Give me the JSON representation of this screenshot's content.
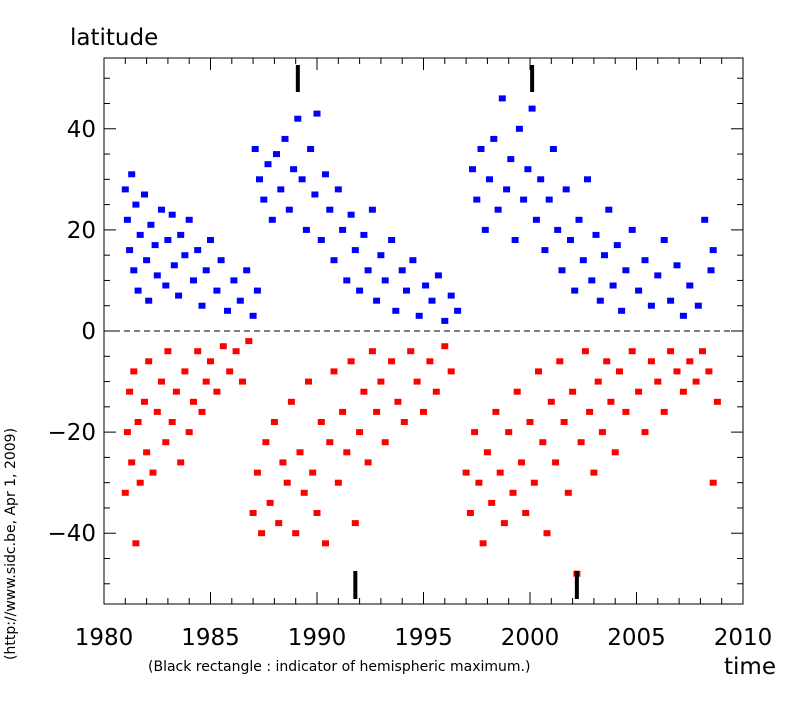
{
  "chart_data": {
    "type": "scatter",
    "ylabel": "latitude",
    "xlabel": "time",
    "note": "(Black rectangle : indicator of hemispheric maximum.)",
    "credit": "(http://www.sidc.be, Apr  1, 2009)",
    "xlim": [
      1980,
      2010
    ],
    "ylim": [
      -54,
      54
    ],
    "x_ticks": [
      1980,
      1985,
      1990,
      1995,
      2000,
      2005,
      2010
    ],
    "x_tick_labels": [
      "1980",
      "1985",
      "1990",
      "1995",
      "2000",
      "2005",
      "2010"
    ],
    "y_ticks": [
      -40,
      -20,
      0,
      20,
      40
    ],
    "y_tick_labels": [
      "−40",
      "−20",
      "0",
      "20",
      "40"
    ],
    "zero_line": true,
    "grid": false,
    "colors": {
      "north": "#0000ff",
      "south": "#ff0000",
      "axes": "#000000",
      "marker": "#000000"
    },
    "series": [
      {
        "hemisphere": "north",
        "color": "#0000ff",
        "points": [
          [
            1981.0,
            28
          ],
          [
            1981.1,
            22
          ],
          [
            1981.2,
            16
          ],
          [
            1981.3,
            31
          ],
          [
            1981.4,
            12
          ],
          [
            1981.5,
            25
          ],
          [
            1981.6,
            8
          ],
          [
            1981.7,
            19
          ],
          [
            1981.9,
            27
          ],
          [
            1982.0,
            14
          ],
          [
            1982.1,
            6
          ],
          [
            1982.2,
            21
          ],
          [
            1982.4,
            17
          ],
          [
            1982.5,
            11
          ],
          [
            1982.7,
            24
          ],
          [
            1982.9,
            9
          ],
          [
            1983.0,
            18
          ],
          [
            1983.2,
            23
          ],
          [
            1983.3,
            13
          ],
          [
            1983.5,
            7
          ],
          [
            1983.6,
            19
          ],
          [
            1983.8,
            15
          ],
          [
            1984.0,
            22
          ],
          [
            1984.2,
            10
          ],
          [
            1984.4,
            16
          ],
          [
            1984.6,
            5
          ],
          [
            1984.8,
            12
          ],
          [
            1985.0,
            18
          ],
          [
            1985.3,
            8
          ],
          [
            1985.5,
            14
          ],
          [
            1985.8,
            4
          ],
          [
            1986.1,
            10
          ],
          [
            1986.4,
            6
          ],
          [
            1986.7,
            12
          ],
          [
            1987.0,
            3
          ],
          [
            1987.2,
            8
          ],
          [
            1987.1,
            36
          ],
          [
            1987.3,
            30
          ],
          [
            1987.5,
            26
          ],
          [
            1987.7,
            33
          ],
          [
            1987.9,
            22
          ],
          [
            1988.1,
            35
          ],
          [
            1988.3,
            28
          ],
          [
            1988.5,
            38
          ],
          [
            1988.7,
            24
          ],
          [
            1988.9,
            32
          ],
          [
            1989.1,
            42
          ],
          [
            1989.3,
            30
          ],
          [
            1989.5,
            20
          ],
          [
            1989.7,
            36
          ],
          [
            1989.9,
            27
          ],
          [
            1990.0,
            43
          ],
          [
            1990.2,
            18
          ],
          [
            1990.4,
            31
          ],
          [
            1990.6,
            24
          ],
          [
            1990.8,
            14
          ],
          [
            1991.0,
            28
          ],
          [
            1991.2,
            20
          ],
          [
            1991.4,
            10
          ],
          [
            1991.6,
            23
          ],
          [
            1991.8,
            16
          ],
          [
            1992.0,
            8
          ],
          [
            1992.2,
            19
          ],
          [
            1992.4,
            12
          ],
          [
            1992.6,
            24
          ],
          [
            1992.8,
            6
          ],
          [
            1993.0,
            15
          ],
          [
            1993.2,
            10
          ],
          [
            1993.5,
            18
          ],
          [
            1993.7,
            4
          ],
          [
            1994.0,
            12
          ],
          [
            1994.2,
            8
          ],
          [
            1994.5,
            14
          ],
          [
            1994.8,
            3
          ],
          [
            1995.1,
            9
          ],
          [
            1995.4,
            6
          ],
          [
            1995.7,
            11
          ],
          [
            1996.0,
            2
          ],
          [
            1996.3,
            7
          ],
          [
            1996.6,
            4
          ],
          [
            1997.3,
            32
          ],
          [
            1997.5,
            26
          ],
          [
            1997.7,
            36
          ],
          [
            1997.9,
            20
          ],
          [
            1998.1,
            30
          ],
          [
            1998.3,
            38
          ],
          [
            1998.5,
            24
          ],
          [
            1998.7,
            46
          ],
          [
            1998.9,
            28
          ],
          [
            1999.1,
            34
          ],
          [
            1999.3,
            18
          ],
          [
            1999.5,
            40
          ],
          [
            1999.7,
            26
          ],
          [
            1999.9,
            32
          ],
          [
            2000.1,
            44
          ],
          [
            2000.3,
            22
          ],
          [
            2000.5,
            30
          ],
          [
            2000.7,
            16
          ],
          [
            2000.9,
            26
          ],
          [
            2001.1,
            36
          ],
          [
            2001.3,
            20
          ],
          [
            2001.5,
            12
          ],
          [
            2001.7,
            28
          ],
          [
            2001.9,
            18
          ],
          [
            2002.1,
            8
          ],
          [
            2002.3,
            22
          ],
          [
            2002.5,
            14
          ],
          [
            2002.7,
            30
          ],
          [
            2002.9,
            10
          ],
          [
            2003.1,
            19
          ],
          [
            2003.3,
            6
          ],
          [
            2003.5,
            15
          ],
          [
            2003.7,
            24
          ],
          [
            2003.9,
            9
          ],
          [
            2004.1,
            17
          ],
          [
            2004.3,
            4
          ],
          [
            2004.5,
            12
          ],
          [
            2004.8,
            20
          ],
          [
            2005.1,
            8
          ],
          [
            2005.4,
            14
          ],
          [
            2005.7,
            5
          ],
          [
            2006.0,
            11
          ],
          [
            2006.3,
            18
          ],
          [
            2006.6,
            6
          ],
          [
            2006.9,
            13
          ],
          [
            2007.2,
            3
          ],
          [
            2007.5,
            9
          ],
          [
            2007.9,
            5
          ],
          [
            2008.2,
            22
          ],
          [
            2008.5,
            12
          ],
          [
            2008.6,
            16
          ]
        ]
      },
      {
        "hemisphere": "south",
        "color": "#ff0000",
        "points": [
          [
            1981.0,
            -32
          ],
          [
            1981.1,
            -20
          ],
          [
            1981.2,
            -12
          ],
          [
            1981.3,
            -26
          ],
          [
            1981.4,
            -8
          ],
          [
            1981.5,
            -42
          ],
          [
            1981.6,
            -18
          ],
          [
            1981.7,
            -30
          ],
          [
            1981.9,
            -14
          ],
          [
            1982.0,
            -24
          ],
          [
            1982.1,
            -6
          ],
          [
            1982.3,
            -28
          ],
          [
            1982.5,
            -16
          ],
          [
            1982.7,
            -10
          ],
          [
            1982.9,
            -22
          ],
          [
            1983.0,
            -4
          ],
          [
            1983.2,
            -18
          ],
          [
            1983.4,
            -12
          ],
          [
            1983.6,
            -26
          ],
          [
            1983.8,
            -8
          ],
          [
            1984.0,
            -20
          ],
          [
            1984.2,
            -14
          ],
          [
            1984.4,
            -4
          ],
          [
            1984.6,
            -16
          ],
          [
            1984.8,
            -10
          ],
          [
            1985.0,
            -6
          ],
          [
            1985.3,
            -12
          ],
          [
            1985.6,
            -3
          ],
          [
            1985.9,
            -8
          ],
          [
            1986.2,
            -4
          ],
          [
            1986.5,
            -10
          ],
          [
            1986.8,
            -2
          ],
          [
            1987.0,
            -36
          ],
          [
            1987.2,
            -28
          ],
          [
            1987.4,
            -40
          ],
          [
            1987.6,
            -22
          ],
          [
            1987.8,
            -34
          ],
          [
            1988.0,
            -18
          ],
          [
            1988.2,
            -38
          ],
          [
            1988.4,
            -26
          ],
          [
            1988.6,
            -30
          ],
          [
            1988.8,
            -14
          ],
          [
            1989.0,
            -40
          ],
          [
            1989.2,
            -24
          ],
          [
            1989.4,
            -32
          ],
          [
            1989.6,
            -10
          ],
          [
            1989.8,
            -28
          ],
          [
            1990.0,
            -36
          ],
          [
            1990.2,
            -18
          ],
          [
            1990.4,
            -42
          ],
          [
            1990.6,
            -22
          ],
          [
            1990.8,
            -8
          ],
          [
            1991.0,
            -30
          ],
          [
            1991.2,
            -16
          ],
          [
            1991.4,
            -24
          ],
          [
            1991.6,
            -6
          ],
          [
            1991.8,
            -38
          ],
          [
            1992.0,
            -20
          ],
          [
            1992.2,
            -12
          ],
          [
            1992.4,
            -26
          ],
          [
            1992.6,
            -4
          ],
          [
            1992.8,
            -16
          ],
          [
            1993.0,
            -10
          ],
          [
            1993.2,
            -22
          ],
          [
            1993.5,
            -6
          ],
          [
            1993.8,
            -14
          ],
          [
            1994.1,
            -18
          ],
          [
            1994.4,
            -4
          ],
          [
            1994.7,
            -10
          ],
          [
            1995.0,
            -16
          ],
          [
            1995.3,
            -6
          ],
          [
            1995.6,
            -12
          ],
          [
            1996.0,
            -3
          ],
          [
            1996.3,
            -8
          ],
          [
            1997.0,
            -28
          ],
          [
            1997.2,
            -36
          ],
          [
            1997.4,
            -20
          ],
          [
            1997.6,
            -30
          ],
          [
            1997.8,
            -42
          ],
          [
            1998.0,
            -24
          ],
          [
            1998.2,
            -34
          ],
          [
            1998.4,
            -16
          ],
          [
            1998.6,
            -28
          ],
          [
            1998.8,
            -38
          ],
          [
            1999.0,
            -20
          ],
          [
            1999.2,
            -32
          ],
          [
            1999.4,
            -12
          ],
          [
            1999.6,
            -26
          ],
          [
            1999.8,
            -36
          ],
          [
            2000.0,
            -18
          ],
          [
            2000.2,
            -30
          ],
          [
            2000.4,
            -8
          ],
          [
            2000.6,
            -22
          ],
          [
            2000.8,
            -40
          ],
          [
            2001.0,
            -14
          ],
          [
            2001.2,
            -26
          ],
          [
            2001.4,
            -6
          ],
          [
            2001.6,
            -18
          ],
          [
            2001.8,
            -32
          ],
          [
            2002.0,
            -12
          ],
          [
            2002.2,
            -48
          ],
          [
            2002.4,
            -22
          ],
          [
            2002.6,
            -4
          ],
          [
            2002.8,
            -16
          ],
          [
            2003.0,
            -28
          ],
          [
            2003.2,
            -10
          ],
          [
            2003.4,
            -20
          ],
          [
            2003.6,
            -6
          ],
          [
            2003.8,
            -14
          ],
          [
            2004.0,
            -24
          ],
          [
            2004.2,
            -8
          ],
          [
            2004.5,
            -16
          ],
          [
            2004.8,
            -4
          ],
          [
            2005.1,
            -12
          ],
          [
            2005.4,
            -20
          ],
          [
            2005.7,
            -6
          ],
          [
            2006.0,
            -10
          ],
          [
            2006.3,
            -16
          ],
          [
            2006.6,
            -4
          ],
          [
            2006.9,
            -8
          ],
          [
            2007.2,
            -12
          ],
          [
            2007.5,
            -6
          ],
          [
            2007.8,
            -10
          ],
          [
            2008.1,
            -4
          ],
          [
            2008.4,
            -8
          ],
          [
            2008.6,
            -30
          ],
          [
            2008.8,
            -14
          ]
        ]
      }
    ],
    "hemispheric_max_markers": {
      "north": [
        1989.1,
        2000.1
      ],
      "south": [
        1991.8,
        2002.2
      ]
    }
  }
}
